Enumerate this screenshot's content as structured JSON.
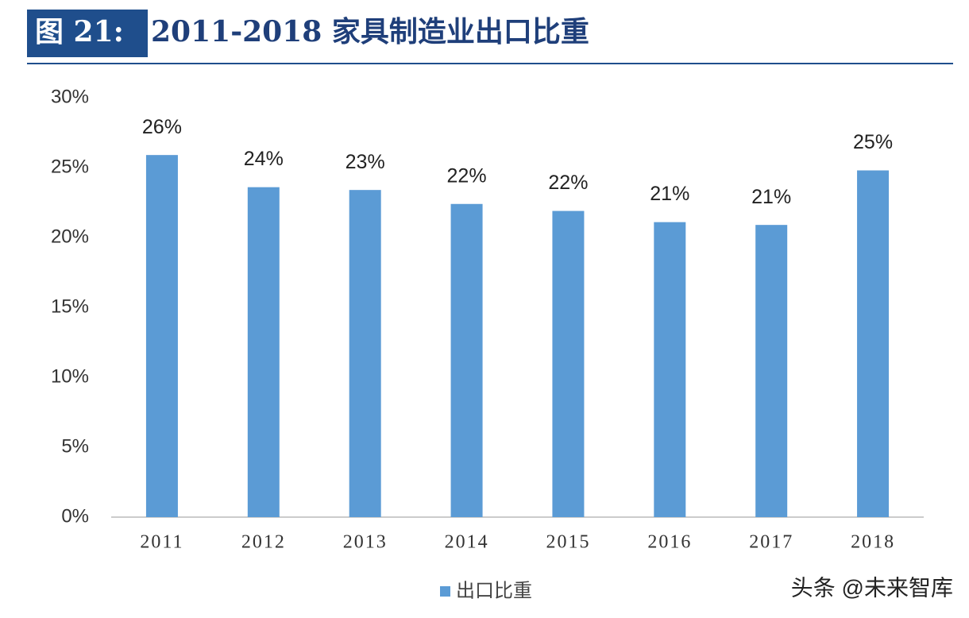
{
  "chart_data": {
    "type": "bar",
    "figure_label": "图 21:",
    "title": "2011-2018 家具制造业出口比重",
    "categories": [
      "2011",
      "2012",
      "2013",
      "2014",
      "2015",
      "2016",
      "2017",
      "2018"
    ],
    "series": [
      {
        "name": "出口比重",
        "color": "#5b9bd5",
        "values": [
          25.9,
          23.6,
          23.4,
          22.4,
          21.9,
          21.1,
          20.9,
          24.8
        ],
        "value_labels": [
          "26%",
          "24%",
          "23%",
          "22%",
          "22%",
          "21%",
          "21%",
          "25%"
        ]
      }
    ],
    "ylim": [
      0,
      30
    ],
    "yticks": [
      {
        "value": 0,
        "label": "0%"
      },
      {
        "value": 5,
        "label": "5%"
      },
      {
        "value": 10,
        "label": "10%"
      },
      {
        "value": 15,
        "label": "15%"
      },
      {
        "value": 20,
        "label": "20%"
      },
      {
        "value": 25,
        "label": "25%"
      },
      {
        "value": 30,
        "label": "30%"
      }
    ],
    "legend": "bottom",
    "watermark": "头条 @未来智库"
  }
}
